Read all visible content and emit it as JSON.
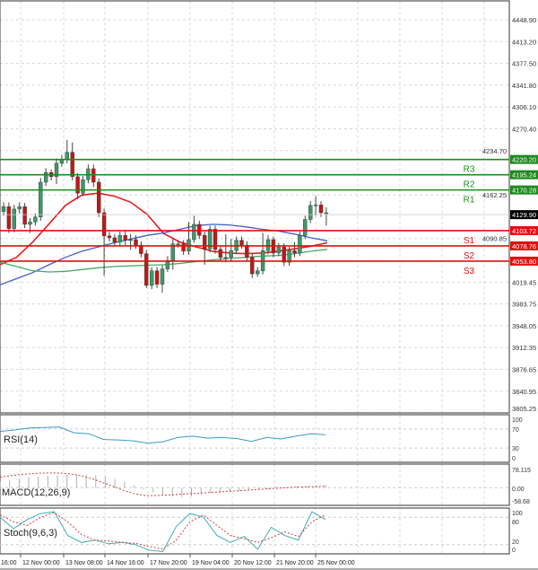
{
  "chart_data": [
    {
      "type": "candlestick",
      "price_axis": {
        "min": 3805.25,
        "max": 4448.9,
        "ticks": [
          "4448.90",
          "4413.20",
          "4377.50",
          "4341.80",
          "4306.10",
          "4270.40",
          "4234.70",
          "4162.25",
          "4090.85",
          "4019.45",
          "3983.75",
          "3948.05",
          "3912.35",
          "3876.65",
          "3840.95",
          "3805.25"
        ]
      },
      "time_labels": [
        "16:00",
        "12 Nov 00:00",
        "13 Nov 08:00",
        "14 Nov 16:00",
        "17 Nov 20:00",
        "19 Nov 04:00",
        "20 Nov 12:00",
        "21 Nov 20:00",
        "25 Nov 00:00"
      ],
      "grid": true,
      "current_price": {
        "value": 4129.9,
        "label": "4129.90"
      },
      "levels": [
        {
          "name": "R3",
          "value": 4220.2,
          "label": "4220.20",
          "color": "#1e8a1e"
        },
        {
          "name": "R2",
          "value": 4195.24,
          "label": "4195.24",
          "color": "#1e8a1e"
        },
        {
          "name": "R1",
          "value": 4170.28,
          "label": "4170.28",
          "color": "#1e8a1e"
        },
        {
          "name": "S1",
          "value": 4103.72,
          "label": "4103.72",
          "color": "#e01010"
        },
        {
          "name": "S2",
          "value": 4078.76,
          "label": "4078.76",
          "color": "#e01010"
        },
        {
          "name": "S3",
          "value": 4053.8,
          "label": "4053.80",
          "color": "#e01010"
        }
      ],
      "colors": {
        "up": "#3c9a6a",
        "down": "#c01818"
      },
      "ohlc": [
        [
          4135,
          4150,
          4128,
          4143
        ],
        [
          4143,
          4150,
          4100,
          4107
        ],
        [
          4107,
          4146,
          4101,
          4139
        ],
        [
          4139,
          4150,
          4132,
          4143
        ],
        [
          4143,
          4149,
          4108,
          4114
        ],
        [
          4114,
          4124,
          4100,
          4118
        ],
        [
          4118,
          4132,
          4112,
          4126
        ],
        [
          4126,
          4190,
          4120,
          4183
        ],
        [
          4183,
          4206,
          4177,
          4199
        ],
        [
          4199,
          4204,
          4186,
          4192
        ],
        [
          4192,
          4222,
          4180,
          4214
        ],
        [
          4214,
          4228,
          4208,
          4220
        ],
        [
          4220,
          4252,
          4214,
          4232
        ],
        [
          4232,
          4248,
          4186,
          4192
        ],
        [
          4192,
          4198,
          4155,
          4165
        ],
        [
          4165,
          4193,
          4160,
          4187
        ],
        [
          4187,
          4212,
          4181,
          4205
        ],
        [
          4205,
          4212,
          4175,
          4183
        ],
        [
          4183,
          4189,
          4126,
          4133
        ],
        [
          4133,
          4140,
          4030,
          4095
        ],
        [
          4095,
          4102,
          4086,
          4092
        ],
        [
          4092,
          4098,
          4078,
          4085
        ],
        [
          4085,
          4102,
          4079,
          4096
        ],
        [
          4096,
          4103,
          4080,
          4088
        ],
        [
          4088,
          4098,
          4072,
          4089
        ],
        [
          4089,
          4096,
          4074,
          4080
        ],
        [
          4080,
          4086,
          4060,
          4066
        ],
        [
          4066,
          4072,
          4010,
          4014
        ],
        [
          4014,
          4044,
          4008,
          4038
        ],
        [
          4038,
          4044,
          4010,
          4016
        ],
        [
          4016,
          4047,
          4002,
          4041
        ],
        [
          4041,
          4062,
          4036,
          4055
        ],
        [
          4055,
          4090,
          4040,
          4082
        ],
        [
          4082,
          4088,
          4076,
          4082
        ],
        [
          4082,
          4088,
          4064,
          4070
        ],
        [
          4070,
          4118,
          4064,
          4089
        ],
        [
          4089,
          4128,
          4084,
          4114
        ],
        [
          4114,
          4120,
          4090,
          4096
        ],
        [
          4096,
          4102,
          4048,
          4074
        ],
        [
          4074,
          4112,
          4068,
          4106
        ],
        [
          4106,
          4112,
          4066,
          4073
        ],
        [
          4073,
          4080,
          4054,
          4060
        ],
        [
          4060,
          4098,
          4052,
          4060
        ],
        [
          4060,
          4090,
          4054,
          4071
        ],
        [
          4071,
          4094,
          4065,
          4088
        ],
        [
          4088,
          4094,
          4074,
          4080
        ],
        [
          4080,
          4086,
          4054,
          4060
        ],
        [
          4060,
          4066,
          4026,
          4033
        ],
        [
          4033,
          4044,
          4028,
          4038
        ],
        [
          4038,
          4100,
          4032,
          4071
        ],
        [
          4071,
          4096,
          4065,
          4089
        ],
        [
          4089,
          4094,
          4060,
          4067
        ],
        [
          4067,
          4083,
          4062,
          4077
        ],
        [
          4077,
          4083,
          4046,
          4052
        ],
        [
          4052,
          4077,
          4046,
          4071
        ],
        [
          4071,
          4085,
          4060,
          4067
        ],
        [
          4067,
          4102,
          4062,
          4096
        ],
        [
          4096,
          4128,
          4090,
          4122
        ],
        [
          4122,
          4152,
          4116,
          4145
        ],
        [
          4145,
          4160,
          4128,
          4146
        ],
        [
          4146,
          4152,
          4126,
          4133
        ],
        [
          4133,
          4142,
          4112,
          4133
        ]
      ],
      "moving_averages": [
        {
          "color": "#e02020",
          "values": [
            4048,
            4060,
            4085,
            4115,
            4145,
            4162,
            4165,
            4160,
            4150,
            4130,
            4099,
            4085,
            4077,
            4070,
            4067,
            4066,
            4067,
            4070,
            4074,
            4078,
            4084
          ]
        },
        {
          "color": "#4060c8",
          "values": [
            4015,
            4025,
            4035,
            4048,
            4060,
            4070,
            4077,
            4084,
            4090,
            4096,
            4100,
            4106,
            4112,
            4114,
            4113,
            4110,
            4106,
            4103,
            4098,
            4092,
            4087
          ]
        },
        {
          "color": "#4aa86a",
          "values": [
            4052,
            4045,
            4038,
            4036,
            4037,
            4040,
            4043,
            4045,
            4046,
            4047,
            4048,
            4050,
            4053,
            4056,
            4058,
            4060,
            4062,
            4063,
            4066,
            4070,
            4073
          ]
        }
      ]
    },
    {
      "type": "line",
      "label": "RSI(14)",
      "ylim": [
        0,
        100
      ],
      "ticks": [
        "100",
        "70",
        "30",
        "0"
      ],
      "color": "#3b9ac8",
      "values": [
        65,
        68,
        72,
        73,
        74,
        62,
        60,
        48,
        47,
        45,
        40,
        43,
        52,
        55,
        51,
        52,
        50,
        44,
        52,
        49,
        55,
        60,
        58
      ]
    },
    {
      "type": "bar+line",
      "label": "MACD(12,26,9)",
      "ticks": [
        "78.115",
        "0.00",
        "-58.68"
      ],
      "ylim": [
        -58.68,
        78.115
      ],
      "histogram": [
        20,
        25,
        30,
        35,
        38,
        40,
        42,
        44,
        45,
        44,
        42,
        38,
        30,
        20,
        8,
        -5,
        -15,
        -25,
        -30,
        -32,
        -30,
        -25,
        -20,
        -18,
        -15,
        -12,
        -10,
        -8,
        -5,
        -2,
        0,
        3,
        5,
        8,
        10
      ],
      "signal": [
        36,
        40,
        44,
        47,
        49,
        50,
        50,
        48,
        44,
        36,
        26,
        14,
        2,
        -10,
        -20,
        -26,
        -27,
        -26,
        -24,
        -22,
        -20,
        -18,
        -16,
        -14,
        -12,
        -10,
        -8,
        -6,
        -4,
        -2,
        0,
        2,
        3,
        4,
        5
      ],
      "signal_color": "#d04040",
      "histogram_color": "#b0b0b0"
    },
    {
      "type": "line",
      "label": "Stoch(9,6,3)",
      "ylim": [
        0,
        100
      ],
      "ticks": [
        "100",
        "80",
        "20",
        "0"
      ],
      "main": [
        80,
        55,
        75,
        88,
        92,
        40,
        25,
        30,
        22,
        25,
        20,
        8,
        5,
        60,
        88,
        80,
        40,
        25,
        38,
        10,
        58,
        40,
        30,
        92,
        75
      ],
      "signal": [
        85,
        70,
        62,
        80,
        90,
        70,
        42,
        30,
        28,
        25,
        23,
        16,
        10,
        30,
        70,
        85,
        62,
        40,
        33,
        25,
        35,
        48,
        38,
        70,
        85
      ],
      "main_color": "#3fb0b0",
      "signal_color": "#d04040"
    }
  ]
}
